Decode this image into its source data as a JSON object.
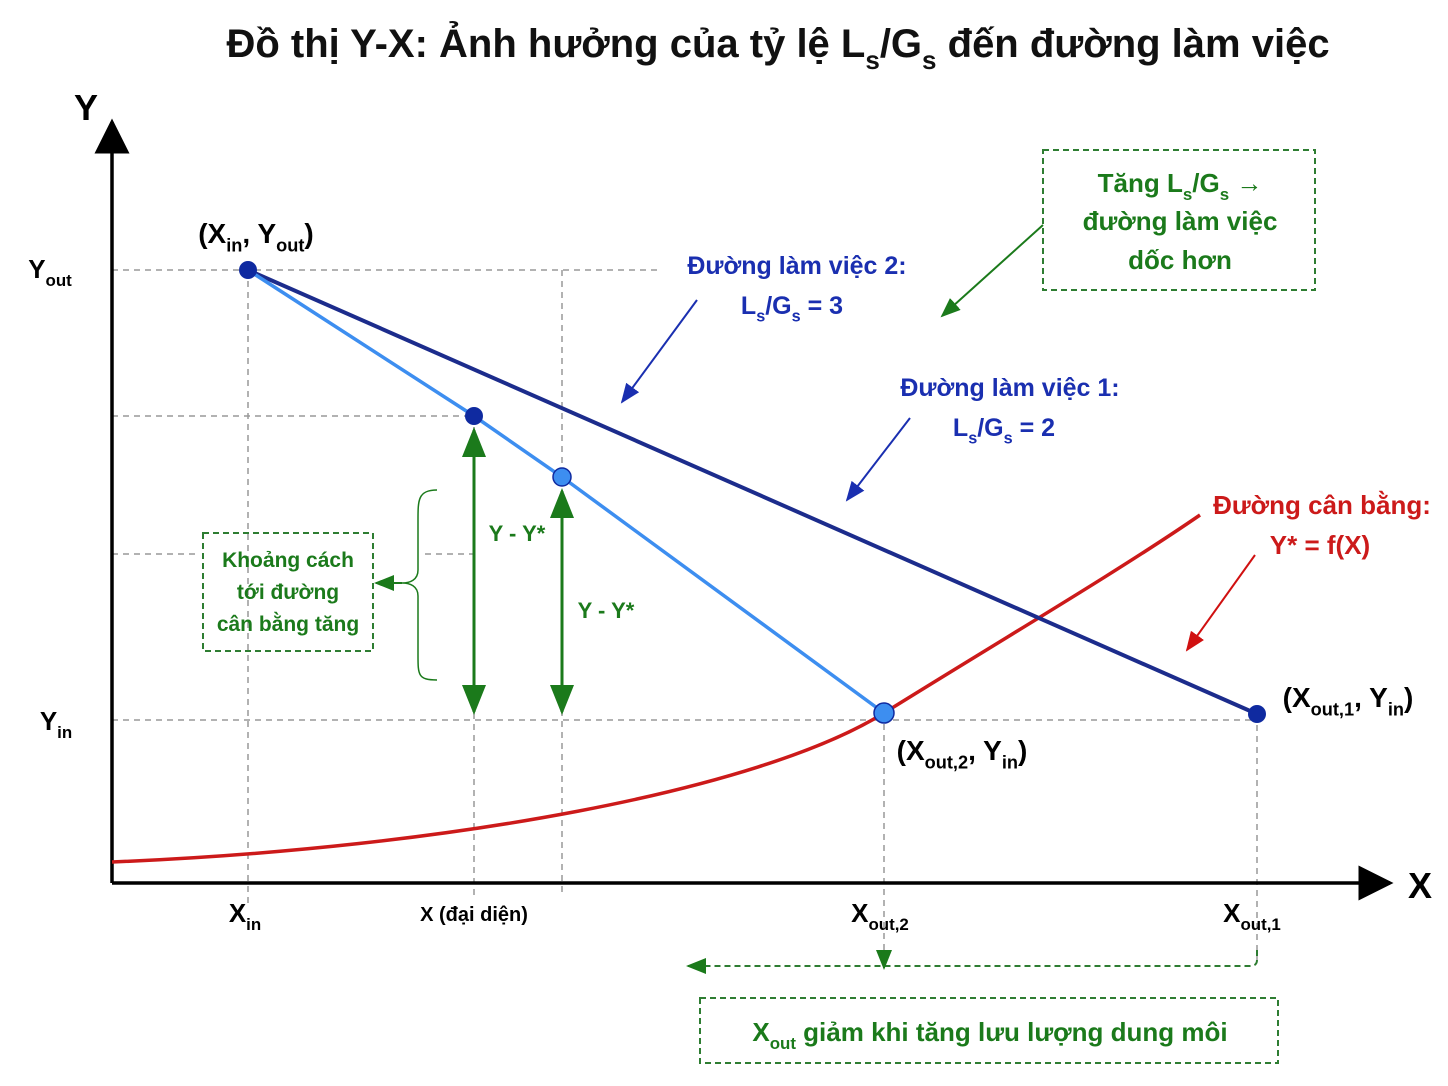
{
  "title": [
    "Đồ thị Y-X: Ảnh hưởng của tỷ lệ L",
    "s",
    "/G",
    "s",
    " đến đường làm việc"
  ],
  "axes": {
    "y_label": "Y",
    "x_label": "X"
  },
  "y_ticks": [
    [
      "Y",
      "out"
    ],
    [
      "Y",
      "in"
    ]
  ],
  "x_ticks": [
    [
      "X",
      "in"
    ],
    [
      "X (đại diện)"
    ],
    [
      "X",
      "out,2"
    ],
    [
      "X",
      "out,1"
    ]
  ],
  "points": [
    [
      "(X",
      "in",
      ", Y",
      "out",
      ")"
    ],
    [
      "(X",
      "out,1",
      ", Y",
      "in",
      ")"
    ],
    [
      "(X",
      "out,2",
      ", Y",
      "in",
      ")"
    ]
  ],
  "working_line_2": {
    "name": "Đường làm việc 2:",
    "ratio": [
      "L",
      "s",
      "/G",
      "s",
      " = 3"
    ]
  },
  "working_line_1": {
    "name": "Đường làm việc 1:",
    "ratio": [
      "L",
      "s",
      "/G",
      "s",
      " = 2"
    ]
  },
  "equilibrium": {
    "name": "Đường cân bằng:",
    "equation": "Y* = f(X)"
  },
  "slope_note": [
    [
      "Tăng L",
      "s",
      "/G",
      "s",
      " →"
    ],
    [
      "đường làm việc"
    ],
    [
      "dốc hơn"
    ]
  ],
  "distance_note": [
    "Khoảng cách",
    "tới đường",
    "cân bằng tăng"
  ],
  "driving_force": [
    "Y - Y*",
    "Y - Y*"
  ],
  "xout_note": [
    "X",
    "out",
    " giảm khi tăng lưu lượng dung môi"
  ]
}
